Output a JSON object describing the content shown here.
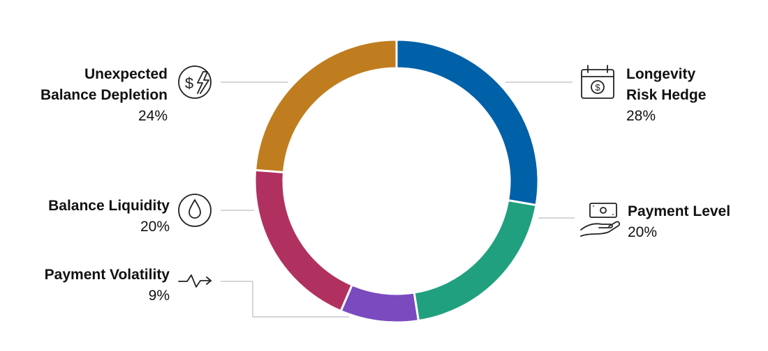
{
  "chart_data": {
    "type": "pie",
    "style": "donut",
    "slices": [
      {
        "name": "Longevity Risk Hedge",
        "name_lines": [
          "Longevity",
          "Risk Hedge"
        ],
        "value": 28,
        "value_label": "28%",
        "color": "#0060A8",
        "icon": "calendar-dollar-icon"
      },
      {
        "name": "Payment Level",
        "name_lines": [
          "Payment Level"
        ],
        "value": 20,
        "value_label": "20%",
        "color": "#20A07E",
        "icon": "hand-cash-icon"
      },
      {
        "name": "Payment Volatility",
        "name_lines": [
          "Payment Volatility"
        ],
        "value": 9,
        "value_label": "9%",
        "color": "#7A4ABE",
        "icon": "zigzag-arrow-icon"
      },
      {
        "name": "Balance Liquidity",
        "name_lines": [
          "Balance Liquidity"
        ],
        "value": 20,
        "value_label": "20%",
        "color": "#B0315F",
        "icon": "water-drop-icon"
      },
      {
        "name": "Unexpected Balance Depletion",
        "name_lines": [
          "Unexpected",
          "Balance Depletion"
        ],
        "value": 24,
        "value_label": "24%",
        "color": "#BF7D1F",
        "icon": "dollar-lightning-icon"
      }
    ],
    "start_angle": "12 o'clock",
    "direction": "clockwise",
    "legend": "none"
  }
}
